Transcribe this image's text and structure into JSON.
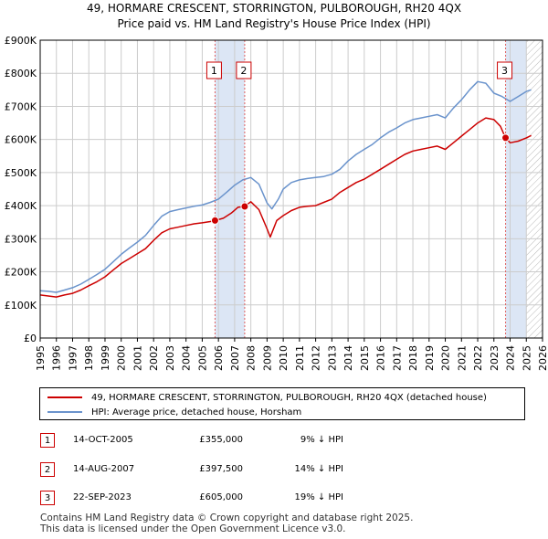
{
  "title_line1": "49, HORMARE CRESCENT, STORRINGTON, PULBOROUGH, RH20 4QX",
  "title_line2": "Price paid vs. HM Land Registry's House Price Index (HPI)",
  "colors": {
    "property": "#cc0000",
    "hpi": "#6a93cc",
    "marker_line": "#e06060",
    "band": "#dce6f5",
    "grid": "#cccccc"
  },
  "chart_data": {
    "type": "line",
    "xlim": [
      1995,
      2026
    ],
    "ylim": [
      0,
      900000
    ],
    "y_ticks": [
      0,
      100000,
      200000,
      300000,
      400000,
      500000,
      600000,
      700000,
      800000,
      900000
    ],
    "y_tick_labels": [
      "£0",
      "£100K",
      "£200K",
      "£300K",
      "£400K",
      "£500K",
      "£600K",
      "£700K",
      "£800K",
      "£900K"
    ],
    "x_ticks": [
      1995,
      1996,
      1997,
      1998,
      1999,
      2000,
      2001,
      2002,
      2003,
      2004,
      2005,
      2006,
      2007,
      2008,
      2009,
      2010,
      2011,
      2012,
      2013,
      2014,
      2015,
      2016,
      2017,
      2018,
      2019,
      2020,
      2021,
      2022,
      2023,
      2024,
      2025,
      2026
    ],
    "x_tick_labels": [
      "1995",
      "1996",
      "1997",
      "1998",
      "1999",
      "2000",
      "2001",
      "2002",
      "2003",
      "2004",
      "2005",
      "2006",
      "2007",
      "2008",
      "2009",
      "2010",
      "2011",
      "2012",
      "2013",
      "2014",
      "2015",
      "2016",
      "2017",
      "2018",
      "2019",
      "2020",
      "2021",
      "2022",
      "2023",
      "2024",
      "2025",
      "2026"
    ],
    "shaded_ranges": [
      [
        2005.79,
        2007.62
      ],
      [
        2023.72,
        2025.0
      ]
    ],
    "future_hatch_from": 2025.0,
    "series": [
      {
        "name": "49, HORMARE CRESCENT, STORRINGTON, PULBOROUGH, RH20 4QX (detached house)",
        "color": "#cc0000",
        "x": [
          1995.0,
          1995.5,
          1996.0,
          1996.5,
          1997.0,
          1997.5,
          1998.0,
          1998.5,
          1999.0,
          1999.5,
          2000.0,
          2000.5,
          2001.0,
          2001.5,
          2002.0,
          2002.5,
          2003.0,
          2003.5,
          2004.0,
          2004.5,
          2005.0,
          2005.5,
          2005.79,
          2006.3,
          2006.8,
          2007.2,
          2007.62,
          2008.0,
          2008.5,
          2009.0,
          2009.2,
          2009.6,
          2010.0,
          2010.5,
          2011.0,
          2011.5,
          2012.0,
          2012.5,
          2013.0,
          2013.5,
          2014.0,
          2014.5,
          2015.0,
          2015.5,
          2016.0,
          2016.5,
          2017.0,
          2017.5,
          2018.0,
          2018.5,
          2019.0,
          2019.5,
          2020.0,
          2020.5,
          2021.0,
          2021.5,
          2022.0,
          2022.5,
          2023.0,
          2023.4,
          2023.72,
          2024.0,
          2024.5,
          2025.0,
          2025.3
        ],
        "y": [
          130000,
          127000,
          124000,
          130000,
          135000,
          145000,
          158000,
          170000,
          185000,
          205000,
          225000,
          240000,
          255000,
          270000,
          295000,
          318000,
          330000,
          335000,
          340000,
          345000,
          348000,
          352000,
          355000,
          362000,
          378000,
          395000,
          397500,
          412000,
          388000,
          330000,
          305000,
          355000,
          370000,
          385000,
          395000,
          398000,
          400000,
          410000,
          420000,
          440000,
          455000,
          470000,
          480000,
          495000,
          510000,
          525000,
          540000,
          555000,
          565000,
          570000,
          575000,
          580000,
          570000,
          590000,
          610000,
          630000,
          650000,
          665000,
          660000,
          640000,
          605000,
          590000,
          595000,
          605000,
          612000
        ]
      },
      {
        "name": "HPI: Average price, detached house, Horsham",
        "color": "#6a93cc",
        "x": [
          1995.0,
          1995.5,
          1996.0,
          1996.5,
          1997.0,
          1997.5,
          1998.0,
          1998.5,
          1999.0,
          1999.5,
          2000.0,
          2000.5,
          2001.0,
          2001.5,
          2002.0,
          2002.5,
          2003.0,
          2003.5,
          2004.0,
          2004.5,
          2005.0,
          2005.5,
          2006.0,
          2006.5,
          2007.0,
          2007.5,
          2008.0,
          2008.5,
          2009.0,
          2009.3,
          2009.7,
          2010.0,
          2010.5,
          2011.0,
          2011.5,
          2012.0,
          2012.5,
          2013.0,
          2013.5,
          2014.0,
          2014.5,
          2015.0,
          2015.5,
          2016.0,
          2016.5,
          2017.0,
          2017.5,
          2018.0,
          2018.5,
          2019.0,
          2019.5,
          2020.0,
          2020.5,
          2021.0,
          2021.5,
          2022.0,
          2022.5,
          2023.0,
          2023.5,
          2024.0,
          2024.5,
          2025.0,
          2025.3
        ],
        "y": [
          143000,
          141000,
          138000,
          145000,
          152000,
          163000,
          177000,
          192000,
          208000,
          230000,
          253000,
          272000,
          290000,
          310000,
          340000,
          368000,
          382000,
          388000,
          393000,
          398000,
          402000,
          410000,
          420000,
          440000,
          462000,
          478000,
          485000,
          465000,
          408000,
          390000,
          420000,
          450000,
          470000,
          478000,
          482000,
          485000,
          488000,
          495000,
          510000,
          535000,
          555000,
          570000,
          585000,
          605000,
          622000,
          635000,
          650000,
          660000,
          665000,
          670000,
          675000,
          665000,
          695000,
          720000,
          750000,
          775000,
          770000,
          740000,
          730000,
          715000,
          730000,
          745000,
          750000
        ]
      }
    ],
    "transactions": [
      {
        "id": "1",
        "x": 2005.79,
        "y": 355000
      },
      {
        "id": "2",
        "x": 2007.62,
        "y": 397500
      },
      {
        "id": "3",
        "x": 2023.72,
        "y": 605000
      }
    ]
  },
  "legend": {
    "property": "49, HORMARE CRESCENT, STORRINGTON, PULBOROUGH, RH20 4QX (detached house)",
    "hpi": "HPI: Average price, detached house, Horsham"
  },
  "transactions_table": [
    {
      "id": "1",
      "date": "14-OCT-2005",
      "price": "£355,000",
      "hpi": "9% ↓ HPI"
    },
    {
      "id": "2",
      "date": "14-AUG-2007",
      "price": "£397,500",
      "hpi": "14% ↓ HPI"
    },
    {
      "id": "3",
      "date": "22-SEP-2023",
      "price": "£605,000",
      "hpi": "19% ↓ HPI"
    }
  ],
  "footer_line1": "Contains HM Land Registry data © Crown copyright and database right 2025.",
  "footer_line2": "This data is licensed under the Open Government Licence v3.0."
}
